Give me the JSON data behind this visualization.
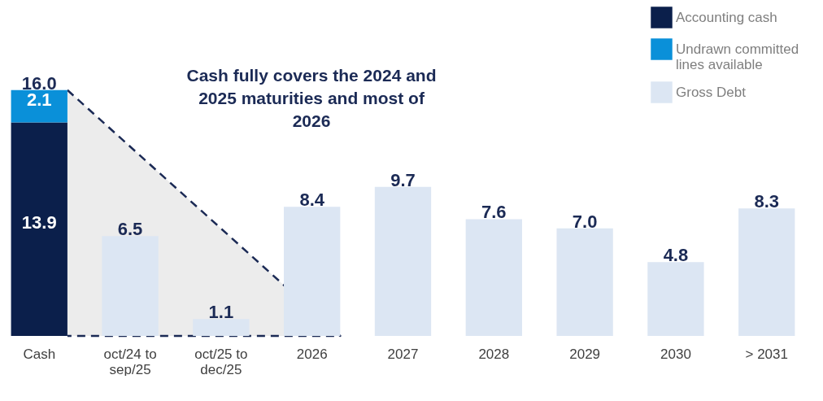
{
  "chart_data": {
    "type": "bar",
    "stacked": true,
    "legend": "top right",
    "categories": [
      "Cash",
      "oct/24 to sep/25",
      "oct/25 to dec/25",
      "2026",
      "2027",
      "2028",
      "2029",
      "2030",
      "> 2031"
    ],
    "series": [
      {
        "name": "Accounting cash",
        "color": "#0b1f4b",
        "values": [
          13.9,
          null,
          null,
          null,
          null,
          null,
          null,
          null,
          null
        ],
        "value_labels": [
          "13.9",
          null,
          null,
          null,
          null,
          null,
          null,
          null,
          null
        ]
      },
      {
        "name": "Undrawn committed lines available",
        "color": "#0a90d9",
        "values": [
          2.1,
          null,
          null,
          null,
          null,
          null,
          null,
          null,
          null
        ],
        "value_labels": [
          "2.1",
          null,
          null,
          null,
          null,
          null,
          null,
          null,
          null
        ]
      },
      {
        "name": "Gross Debt",
        "color": "#dce6f3",
        "values": [
          null,
          6.5,
          1.1,
          8.4,
          9.7,
          7.6,
          7.0,
          4.8,
          8.3
        ],
        "value_labels": [
          null,
          "6.5",
          "1.1",
          "8.4",
          "9.7",
          "7.6",
          "7.0",
          "4.8",
          "8.3"
        ]
      }
    ],
    "totals": [
      "16.0",
      null,
      null,
      null,
      null,
      null,
      null,
      null,
      null
    ],
    "annotations": [
      "Cash fully covers the 2024 and 2025 maturities and most of 2026"
    ]
  }
}
